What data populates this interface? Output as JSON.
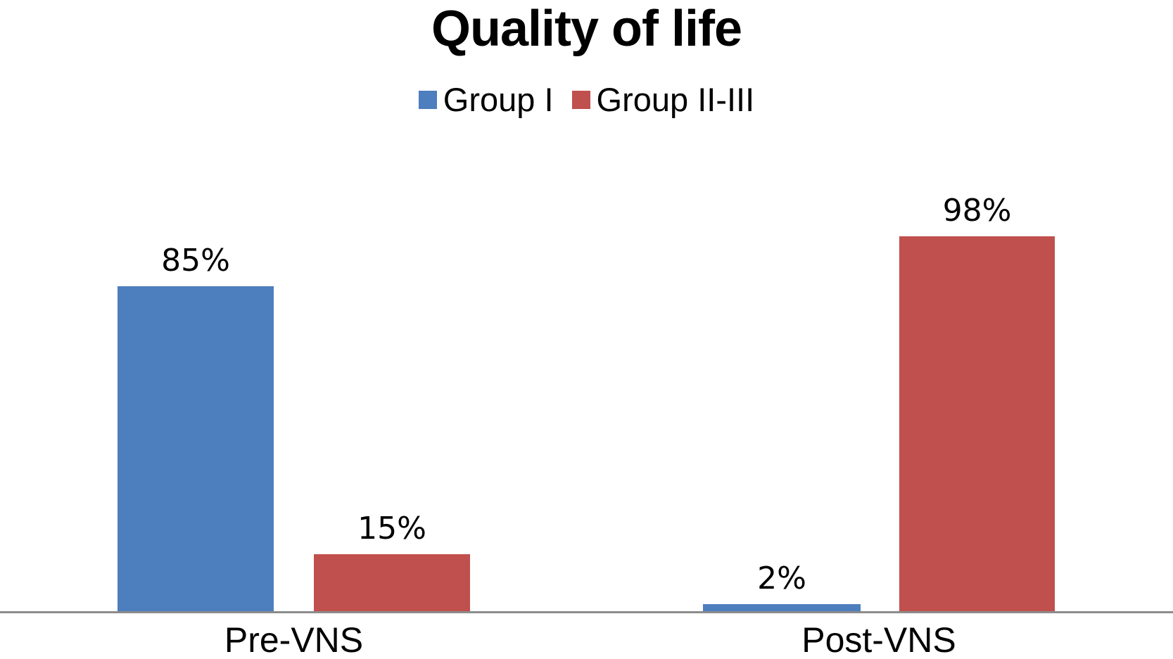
{
  "title": "Quality of life",
  "legend": {
    "items": [
      {
        "label": "Group I",
        "color": "#4D7EBD"
      },
      {
        "label": "Group II-III",
        "color": "#C0504D"
      }
    ]
  },
  "x_axis": {
    "labels": [
      "Pre-VNS",
      "Post-VNS"
    ]
  },
  "bars": [
    {
      "category": "Pre-VNS",
      "series": "Group I",
      "value": 85,
      "label": "85%",
      "color": "#4D7EBD"
    },
    {
      "category": "Pre-VNS",
      "series": "Group II-III",
      "value": 15,
      "label": "15%",
      "color": "#C0504D"
    },
    {
      "category": "Post-VNS",
      "series": "Group I",
      "value": 2,
      "label": "2%",
      "color": "#4D7EBD"
    },
    {
      "category": "Post-VNS",
      "series": "Group II-III",
      "value": 98,
      "label": "98%",
      "color": "#C0504D"
    }
  ],
  "chart_data": {
    "type": "bar",
    "title": "Quality of life",
    "categories": [
      "Pre-VNS",
      "Post-VNS"
    ],
    "series": [
      {
        "name": "Group I",
        "color": "#4D7EBD",
        "values": [
          85,
          2
        ]
      },
      {
        "name": "Group II-III",
        "color": "#C0504D",
        "values": [
          15,
          98
        ]
      }
    ],
    "value_labels": [
      [
        "85%",
        "2%"
      ],
      [
        "15%",
        "98%"
      ]
    ],
    "unit": "%",
    "xlabel": "",
    "ylabel": "",
    "ylim": [
      0,
      100
    ],
    "grid": false,
    "y_axis_visible": false,
    "legend_position": "top-center",
    "axis_line_color": "#8C8C8C",
    "background": "#FFFFFF"
  }
}
